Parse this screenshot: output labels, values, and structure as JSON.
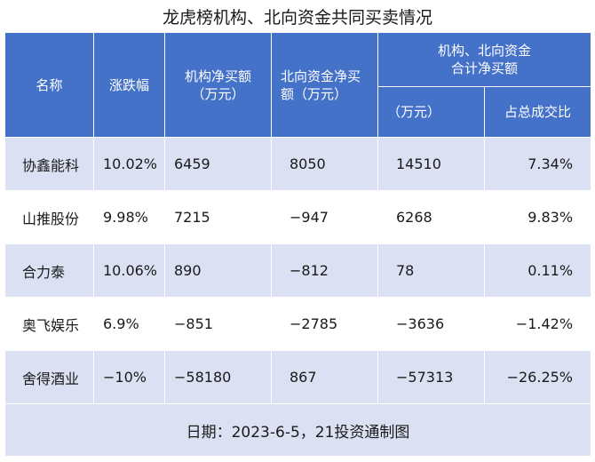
{
  "title": "龙虎榜机构、北向资金共同买卖情况",
  "headers": {
    "name": "名称",
    "change": "涨跌幅",
    "inst_line1": "机构净买额",
    "inst_line2": "（万元）",
    "north_line1": "北向资金净买",
    "north_line2": "额（万元）",
    "combined_line1": "机构、北向资金",
    "combined_line2": "合计净买额",
    "combined_sub_amount": "（万元）",
    "combined_sub_ratio": "占总成交比"
  },
  "rows": [
    {
      "name": "协鑫能科",
      "change": "10.02%",
      "inst": "6459",
      "north": "8050",
      "total": "14510",
      "ratio": "7.34%"
    },
    {
      "name": "山推股份",
      "change": "9.98%",
      "inst": "7215",
      "north": "−947",
      "total": "6268",
      "ratio": "9.83%"
    },
    {
      "name": "合力泰",
      "change": "10.06%",
      "inst": "890",
      "north": "−812",
      "total": "78",
      "ratio": "0.11%"
    },
    {
      "name": "奥飞娱乐",
      "change": "6.9%",
      "inst": "−851",
      "north": "−2785",
      "total": "−3636",
      "ratio": "−1.42%"
    },
    {
      "name": "舍得酒业",
      "change": "−10%",
      "inst": "−58180",
      "north": "867",
      "total": "−57313",
      "ratio": "−26.25%"
    }
  ],
  "footer": "日期：2023-6-5，21投资通制图",
  "colors": {
    "header_bg": "#4572c9",
    "row_alt_bg": "#dbe0f2"
  }
}
